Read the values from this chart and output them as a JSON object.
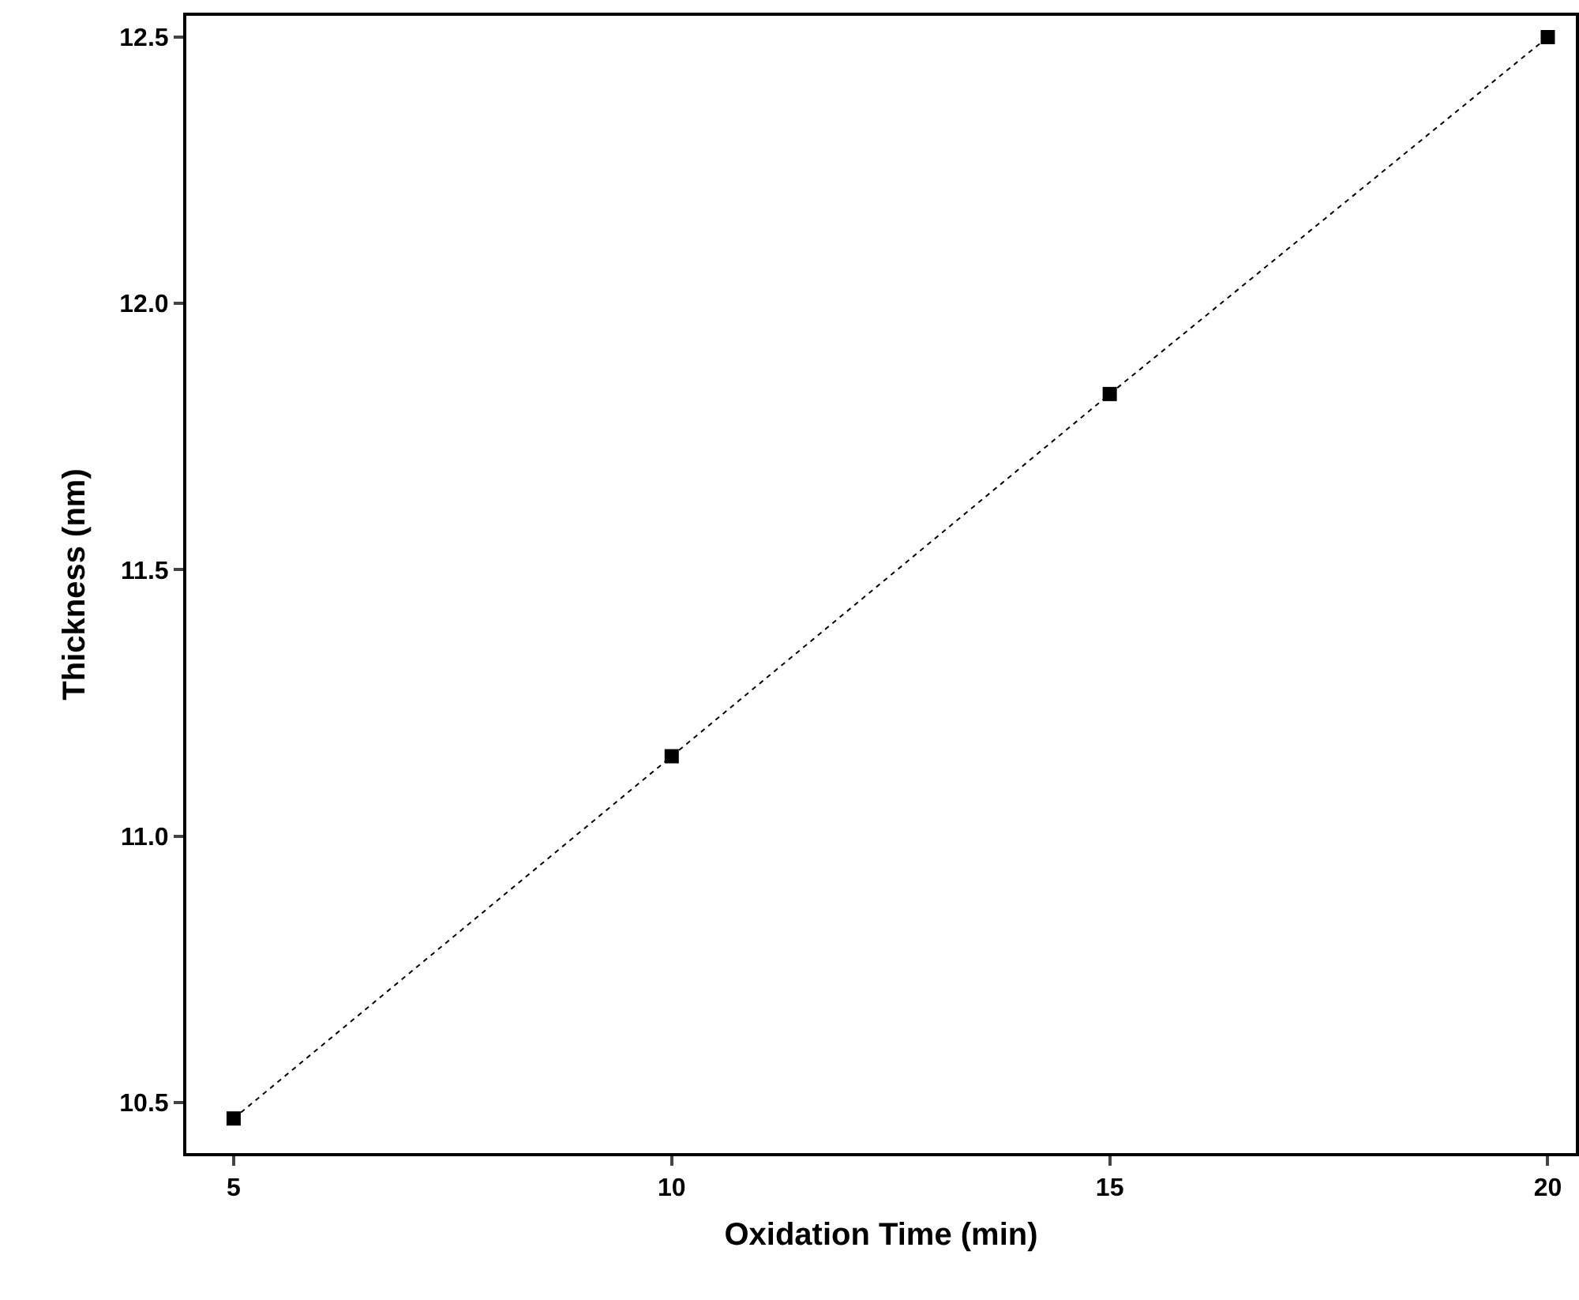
{
  "chart_data": {
    "type": "line",
    "xlabel": "Oxidation Time (min)",
    "ylabel": "Thickness (nm)",
    "x": [
      5,
      10,
      15,
      20
    ],
    "series": [
      {
        "color": "#000000",
        "values": [
          10.47,
          11.15,
          11.83,
          12.5
        ]
      }
    ],
    "xlim": [
      4.46,
      20.32
    ],
    "xticks": [
      5,
      10,
      15,
      20
    ],
    "ylim": [
      10.405,
      12.54
    ],
    "yticks": [
      10.5,
      {
        "value": 11,
        "label": "11.0"
      },
      11.5,
      {
        "value": 12,
        "label": "12.0"
      },
      12.5
    ],
    "marker": "square",
    "line_style": "dotted",
    "grid": false
  }
}
